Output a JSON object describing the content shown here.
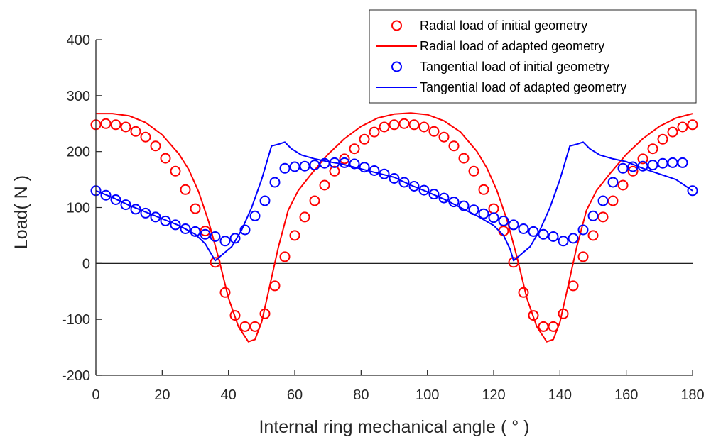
{
  "chart_data": {
    "type": "line",
    "xlabel": "Internal ring mechanical angle ( ° )",
    "ylabel": "Load( N )",
    "xlim": [
      0,
      180
    ],
    "ylim": [
      -200,
      400
    ],
    "xticks": [
      "0",
      "20",
      "40",
      "60",
      "80",
      "100",
      "120",
      "140",
      "160",
      "180"
    ],
    "yticks": [
      "-200",
      "-100",
      "0",
      "100",
      "200",
      "300",
      "400"
    ],
    "grid": false,
    "legend_position": "top-right",
    "zero_line": true,
    "colors": {
      "red": "#ff0000",
      "blue": "#0000ff",
      "axis": "#262626"
    },
    "series": [
      {
        "name": "Radial load of initial geometry",
        "style": "marker",
        "color": "#ff0000",
        "x": [
          0,
          3,
          6,
          9,
          12,
          15,
          18,
          21,
          24,
          27,
          30,
          33,
          36,
          39,
          42,
          45,
          48,
          51,
          54,
          57,
          60,
          63,
          66,
          69,
          72,
          75,
          78,
          81,
          84,
          87,
          90,
          93,
          96,
          99,
          102,
          105,
          108,
          111,
          114,
          117,
          120,
          123,
          126,
          129,
          132,
          135,
          138,
          141,
          144,
          147,
          150,
          153,
          156,
          159,
          162,
          165,
          168,
          171,
          174,
          177,
          180
        ],
        "y": [
          248,
          250,
          248,
          244,
          236,
          226,
          210,
          188,
          165,
          132,
          98,
          58,
          2,
          -52,
          -93,
          -113,
          -113,
          -90,
          -40,
          12,
          50,
          83,
          112,
          140,
          165,
          187,
          205,
          222,
          235,
          244,
          248,
          250,
          248,
          244,
          236,
          226,
          210,
          188,
          165,
          132,
          98,
          58,
          2,
          -52,
          -93,
          -113,
          -113,
          -90,
          -40,
          12,
          50,
          83,
          112,
          140,
          165,
          187,
          205,
          222,
          235,
          244,
          248
        ]
      },
      {
        "name": "Radial load of adapted geometry",
        "style": "line",
        "color": "#ff0000",
        "x": [
          0,
          5,
          10,
          15,
          20,
          25,
          28,
          31,
          34,
          37,
          40,
          43,
          46,
          48,
          50,
          52,
          55,
          58,
          61,
          65,
          70,
          75,
          80,
          85,
          90,
          95,
          100,
          105,
          110,
          115,
          118,
          121,
          124,
          127,
          130,
          133,
          136,
          138,
          140,
          142,
          145,
          148,
          151,
          155,
          160,
          165,
          170,
          175,
          180
        ],
        "y": [
          268,
          268,
          264,
          252,
          230,
          196,
          168,
          128,
          75,
          10,
          -62,
          -113,
          -140,
          -136,
          -105,
          -52,
          28,
          95,
          130,
          160,
          195,
          223,
          245,
          260,
          267,
          269,
          266,
          255,
          235,
          200,
          170,
          130,
          78,
          12,
          -62,
          -113,
          -140,
          -136,
          -105,
          -52,
          28,
          95,
          130,
          160,
          195,
          223,
          245,
          260,
          268
        ]
      },
      {
        "name": "Tangential load of initial geometry",
        "style": "marker",
        "color": "#0000ff",
        "x": [
          0,
          3,
          6,
          9,
          12,
          15,
          18,
          21,
          24,
          27,
          30,
          33,
          36,
          39,
          42,
          45,
          48,
          51,
          54,
          57,
          60,
          63,
          66,
          69,
          72,
          75,
          78,
          81,
          84,
          87,
          90,
          93,
          96,
          99,
          102,
          105,
          108,
          111,
          114,
          117,
          120,
          123,
          126,
          129,
          132,
          135,
          138,
          141,
          144,
          147,
          150,
          153,
          156,
          159,
          162,
          165,
          168,
          171,
          174,
          177,
          180
        ],
        "y": [
          130,
          122,
          114,
          105,
          97,
          90,
          83,
          76,
          69,
          62,
          57,
          52,
          48,
          40,
          45,
          60,
          85,
          112,
          145,
          170,
          173,
          174,
          176,
          179,
          180,
          180,
          178,
          172,
          166,
          160,
          152,
          145,
          138,
          131,
          124,
          117,
          110,
          103,
          96,
          89,
          82,
          76,
          69,
          62,
          57,
          52,
          48,
          40,
          45,
          60,
          85,
          112,
          145,
          170,
          173,
          174,
          176,
          179,
          180,
          180,
          130
        ]
      },
      {
        "name": "Tangential load of adapted geometry",
        "style": "line",
        "color": "#0000ff",
        "x": [
          0,
          5,
          10,
          15,
          20,
          25,
          30,
          33,
          35,
          36,
          38,
          41,
          44,
          47,
          50,
          53,
          55,
          57,
          59,
          62,
          66,
          70,
          74,
          78,
          82,
          86,
          90,
          95,
          100,
          105,
          110,
          115,
          120,
          123,
          125,
          126,
          128,
          131,
          134,
          137,
          140,
          143,
          145,
          147,
          149,
          152,
          156,
          160,
          165,
          170,
          175,
          180
        ],
        "y": [
          130,
          118,
          104,
          92,
          80,
          68,
          52,
          35,
          15,
          5,
          15,
          30,
          60,
          100,
          150,
          210,
          213,
          217,
          205,
          194,
          187,
          182,
          178,
          172,
          166,
          160,
          154,
          140,
          128,
          115,
          100,
          85,
          68,
          50,
          25,
          5,
          15,
          30,
          60,
          100,
          150,
          210,
          213,
          217,
          205,
          194,
          187,
          182,
          170,
          160,
          150,
          130
        ]
      }
    ]
  }
}
